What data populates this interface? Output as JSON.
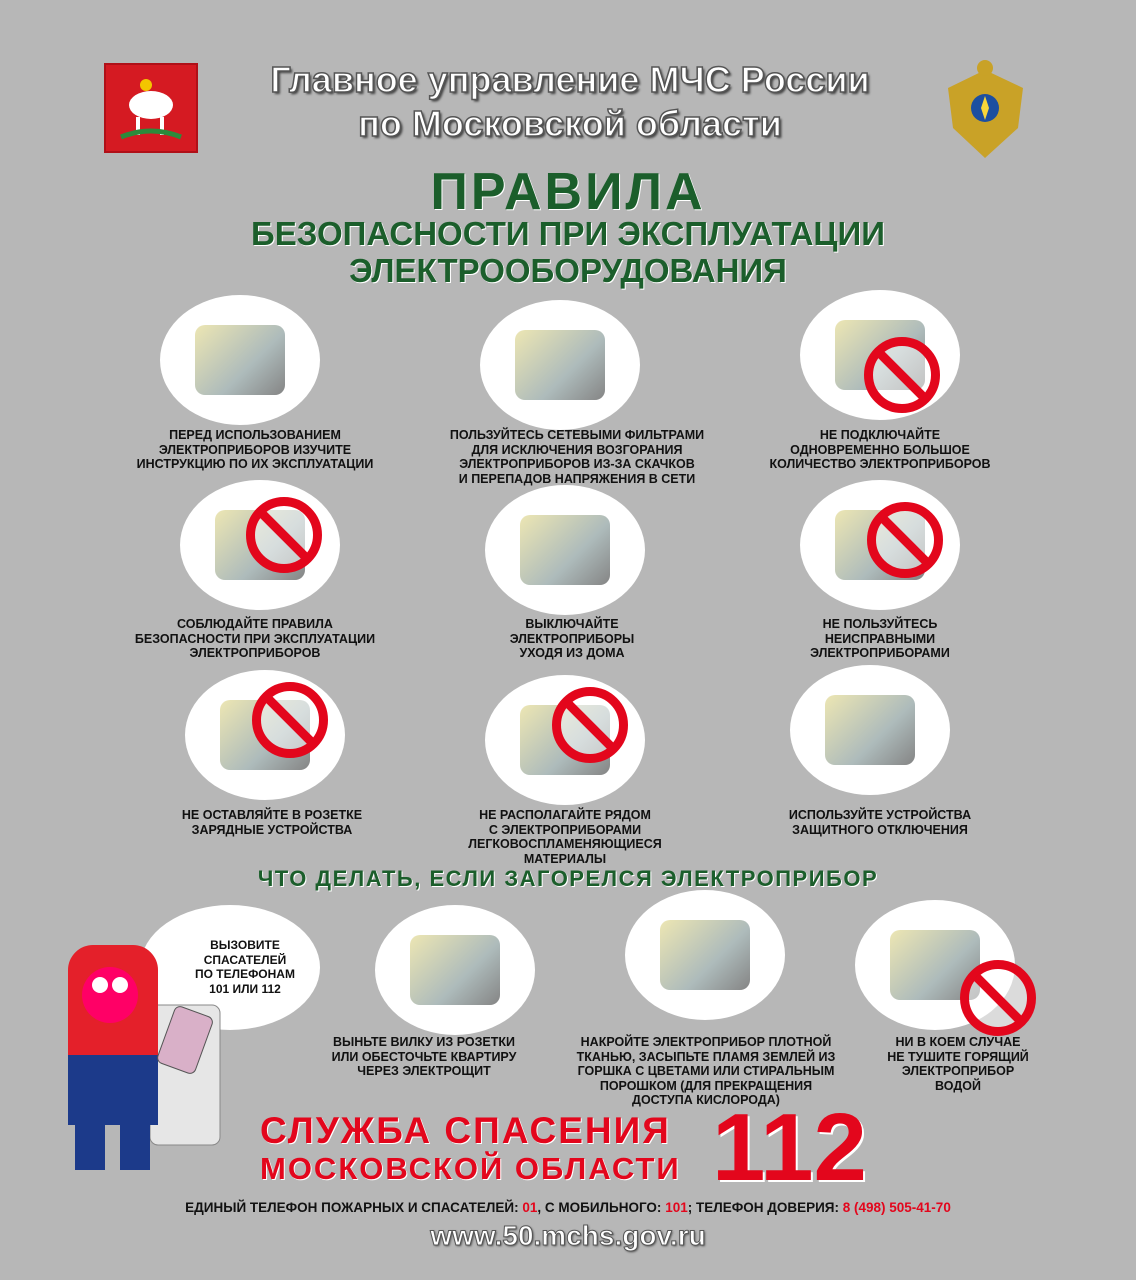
{
  "header": {
    "line1": "Главное управление МЧС России",
    "line2": "по Московской области"
  },
  "title": {
    "main": "ПРАВИЛА",
    "sub1": "БЕЗОПАСНОСТИ ПРИ ЭКСПЛУАТАЦИИ",
    "sub2": "ЭЛЕКТРООБОРУДОВАНИЯ"
  },
  "rules": [
    {
      "lines": [
        "ПЕРЕД ИСПОЛЬЗОВАНИЕМ",
        "ЭЛЕКТРОПРИБОРОВ ИЗУЧИТЕ",
        "ИНСТРУКЦИЮ ПО ИХ ЭКСПЛУАТАЦИИ"
      ],
      "icon": "instruction-book-icon",
      "prohibited": false
    },
    {
      "lines": [
        "ПОЛЬЗУЙТЕСЬ СЕТЕВЫМИ ФИЛЬТРАМИ",
        "ДЛЯ ИСКЛЮЧЕНИЯ ВОЗГОРАНИЯ",
        "ЭЛЕКТРОПРИБОРОВ ИЗ-ЗА СКАЧКОВ",
        "И ПЕРЕПАДОВ НАПРЯЖЕНИЯ В СЕТИ"
      ],
      "icon": "power-strip-icon",
      "prohibited": false
    },
    {
      "lines": [
        "НЕ ПОДКЛЮЧАЙТЕ",
        "ОДНОВРЕМЕННО БОЛЬШОЕ",
        "КОЛИЧЕСТВО ЭЛЕКТРОПРИБОРОВ"
      ],
      "icon": "overloaded-socket-icon",
      "prohibited": true
    },
    {
      "lines": [
        "СОБЛЮДАЙТЕ ПРАВИЛА",
        "БЕЗОПАСНОСТИ ПРИ ЭКСПЛУАТАЦИИ",
        "ЭЛЕКТРОПРИБОРОВ"
      ],
      "icon": "burning-iron-icon",
      "prohibited": true
    },
    {
      "lines": [
        "ВЫКЛЮЧАЙТЕ",
        "ЭЛЕКТРОПРИБОРЫ",
        "УХОДЯ ИЗ ДОМА"
      ],
      "icon": "unplug-icon",
      "prohibited": false
    },
    {
      "lines": [
        "НЕ ПОЛЬЗУЙТЕСЬ",
        "НЕИСПРАВНЫМИ",
        "ЭЛЕКТРОПРИБОРАМИ"
      ],
      "icon": "faulty-iron-icon",
      "prohibited": true
    },
    {
      "lines": [
        "НЕ ОСТАВЛЯЙТЕ В РОЗЕТКЕ",
        "ЗАРЯДНЫЕ УСТРОЙСТВА"
      ],
      "icon": "charger-icon",
      "prohibited": true
    },
    {
      "lines": [
        "НЕ РАСПОЛАГАЙТЕ РЯДОМ",
        "С ЭЛЕКТРОПРИБОРАМИ",
        "ЛЕГКОВОСПЛАМЕНЯЮЩИЕСЯ",
        "МАТЕРИАЛЫ"
      ],
      "icon": "flammable-barrel-icon",
      "prohibited": true
    },
    {
      "lines": [
        "ИСПОЛЬЗУЙТЕ УСТРОЙСТВА",
        "ЗАЩИТНОГО ОТКЛЮЧЕНИЯ"
      ],
      "icon": "circuit-breaker-icon",
      "prohibited": false
    }
  ],
  "fire_section": {
    "heading": "ЧТО ДЕЛАТЬ, ЕСЛИ ЗАГОРЕЛСЯ ЭЛЕКТРОПРИБОР",
    "call": [
      "ВЫЗОВИТЕ",
      "СПАСАТЕЛЕЙ",
      "ПО ТЕЛЕФОНАМ",
      "101 ИЛИ 112"
    ],
    "steps": [
      {
        "lines": [
          "ВЫНЬТЕ ВИЛКУ ИЗ РОЗЕТКИ",
          "ИЛИ ОБЕСТОЧЬТЕ КВАРТИРУ",
          "ЧЕРЕЗ ЭЛЕКТРОЩИТ"
        ],
        "icon": "electrical-panel-icon",
        "prohibited": false
      },
      {
        "lines": [
          "НАКРОЙТЕ ЭЛЕКТРОПРИБОР ПЛОТНОЙ",
          "ТКАНЬЮ, ЗАСЫПЬТЕ ПЛАМЯ ЗЕМЛЕЙ ИЗ",
          "ГОРШКА С ЦВЕТАМИ ИЛИ СТИРАЛЬНЫМ",
          "ПОРОШКОМ (ДЛЯ ПРЕКРАЩЕНИЯ",
          "ДОСТУПА КИСЛОРОДА)"
        ],
        "icon": "cloth-pot-powder-icon",
        "prohibited": false
      },
      {
        "lines": [
          "НИ В КОЕМ СЛУЧАЕ",
          "НЕ ТУШИТЕ ГОРЯЩИЙ",
          "ЭЛЕКТРОПРИБОР",
          "ВОДОЙ"
        ],
        "icon": "water-drop-icon",
        "prohibited": true
      }
    ]
  },
  "service": {
    "line1": "СЛУЖБА СПАСЕНИЯ",
    "line2": "МОСКОВСКОЙ ОБЛАСТИ",
    "number": "112"
  },
  "footer": {
    "t1": "ЕДИНЫЙ ТЕЛЕФОН ПОЖАРНЫХ И СПАСАТЕЛЕЙ: ",
    "n1": "01",
    "t2": ", С МОБИЛЬНОГО: ",
    "n2": "101",
    "t3": "; ТЕЛЕФОН ДОВЕРИЯ: ",
    "n3": "8 (498) 505-41-70",
    "url": "www.50.mchs.gov.ru"
  },
  "colors": {
    "background": "#b7b7b7",
    "title_green": "#1b5e2b",
    "accent_red": "#e3061c"
  }
}
